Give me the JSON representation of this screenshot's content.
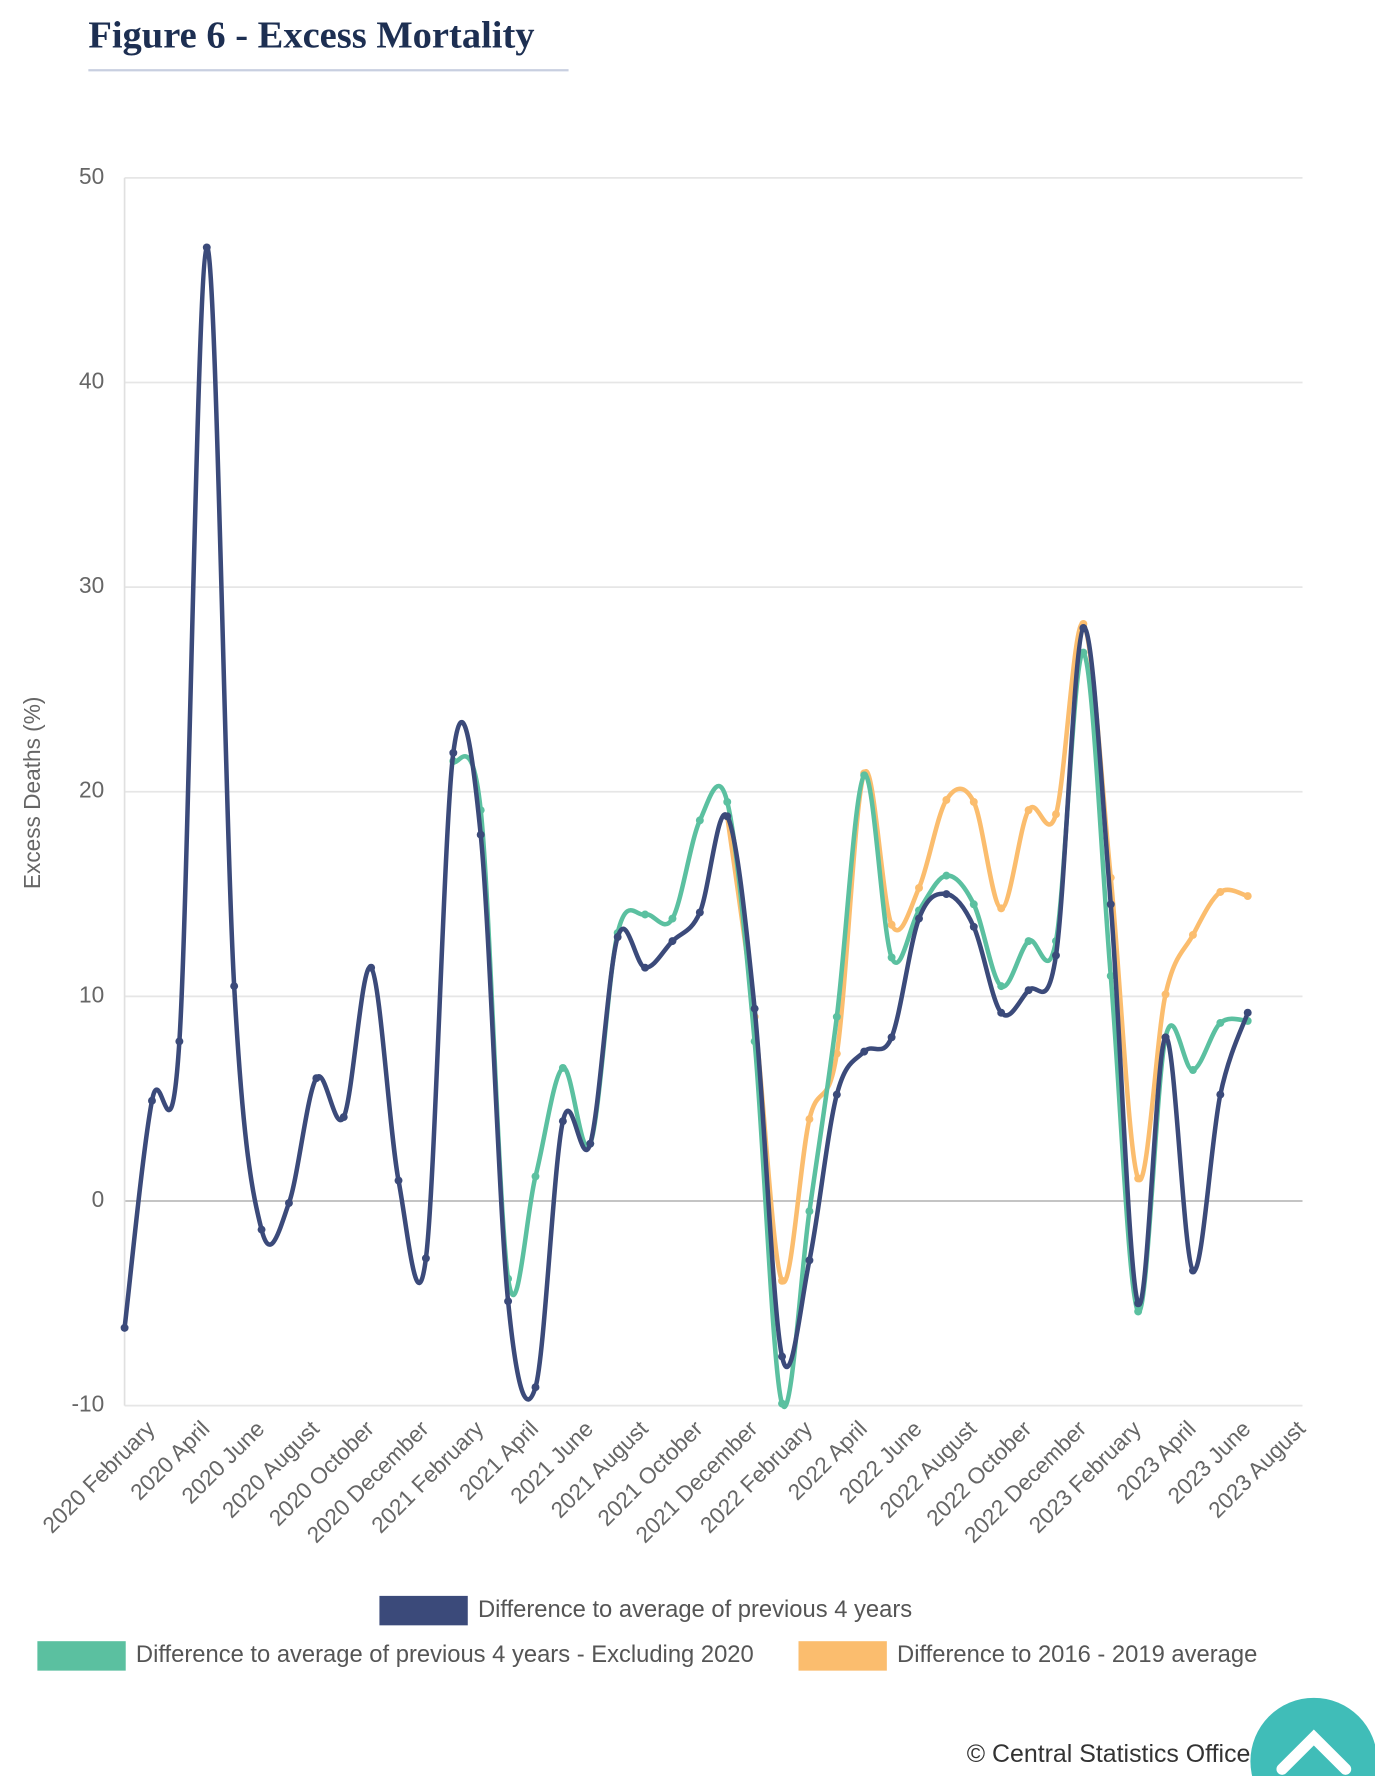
{
  "chart_data": {
    "type": "line",
    "title": "Figure 6 - Excess Mortality",
    "y_label": "Excess Deaths (%)",
    "source": "© Central Statistics Office",
    "categories": [
      null,
      "2020 February",
      null,
      "2020 April",
      null,
      "2020 June",
      null,
      "2020 August",
      null,
      "2020 October",
      null,
      "2020 December",
      null,
      "2021 February",
      null,
      "2021 April",
      null,
      "2021 June",
      null,
      "2021 August",
      null,
      "2021 October",
      null,
      "2021 December",
      null,
      "2022 February",
      null,
      "2022 April",
      null,
      "2022 June",
      null,
      "2022 August",
      null,
      "2022 October",
      null,
      "2022 December",
      null,
      "2023 February",
      null,
      "2023 April",
      null,
      "2023 June",
      null,
      "2023 August"
    ],
    "ylim": [
      -10,
      50
    ],
    "yticks": [
      -10,
      0,
      10,
      20,
      30,
      40,
      50
    ],
    "grid": true,
    "series": [
      {
        "name": "Difference to average of previous 4 years",
        "color": "#3b4a7a",
        "values": [
          -6.2,
          4.9,
          7.8,
          46.6,
          10.5,
          -1.4,
          -0.1,
          6.0,
          4.1,
          11.4,
          1.0,
          -2.8,
          21.9,
          17.9,
          -4.9,
          -9.1,
          3.9,
          2.8,
          12.9,
          11.4,
          12.7,
          14.1,
          18.8,
          9.4,
          -7.6,
          -2.9,
          5.2,
          7.3,
          8.0,
          13.8,
          15.0,
          13.4,
          9.2,
          10.3,
          12.0,
          28.0,
          14.5,
          -5.0,
          8.0,
          -3.4,
          5.2,
          9.2,
          null,
          null
        ]
      },
      {
        "name": "Difference to average of previous 4 years - Excluding 2020",
        "color": "#5bc0a0",
        "values": [
          null,
          null,
          null,
          null,
          null,
          null,
          null,
          null,
          null,
          null,
          null,
          null,
          21.5,
          19.1,
          -3.8,
          1.2,
          6.5,
          2.8,
          13.1,
          14.0,
          13.8,
          18.6,
          19.5,
          7.8,
          -9.9,
          -0.5,
          9.0,
          20.8,
          11.9,
          14.2,
          15.9,
          14.5,
          10.5,
          12.7,
          12.7,
          26.8,
          11.0,
          -5.4,
          8.0,
          6.4,
          8.7,
          8.8,
          null,
          null
        ]
      },
      {
        "name": "Difference to 2016 - 2019 average",
        "color": "#fbbd6e",
        "values": [
          null,
          null,
          null,
          null,
          null,
          null,
          null,
          null,
          null,
          null,
          null,
          null,
          null,
          null,
          null,
          null,
          null,
          null,
          null,
          null,
          null,
          null,
          18.8,
          9.0,
          -3.9,
          4.0,
          7.2,
          20.9,
          13.5,
          15.3,
          19.6,
          19.5,
          14.3,
          19.1,
          18.9,
          28.2,
          15.8,
          1.1,
          10.1,
          13.0,
          15.1,
          14.9,
          null,
          null
        ]
      }
    ]
  }
}
